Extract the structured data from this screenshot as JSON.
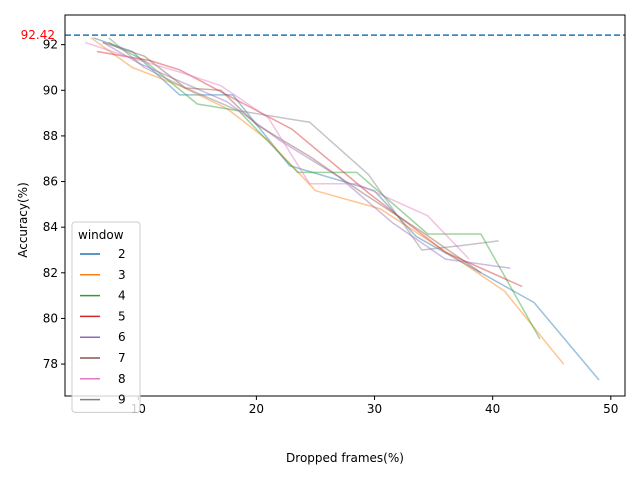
{
  "chart_data": {
    "type": "line",
    "title": "",
    "xlabel": "Dropped frames(%)",
    "ylabel": "Accuracy(%)",
    "xlim": [
      3.8,
      51.2
    ],
    "ylim": [
      76.6,
      93.3
    ],
    "xticks": [
      10,
      20,
      30,
      40,
      50
    ],
    "yticks": [
      78,
      80,
      82,
      84,
      86,
      88,
      90,
      92
    ],
    "grid": false,
    "legend": {
      "title": "window",
      "placement": "lower-left"
    },
    "reference_line": {
      "y": 92.42,
      "label": "92.42",
      "color": "#1f77b4",
      "label_color": "#ff0000",
      "style": "dashed"
    },
    "series": [
      {
        "name": "2",
        "color": "#1f77b4",
        "x": [
          6.2,
          9.5,
          13.5,
          15.0,
          18.0,
          22.8,
          30.0,
          33.5,
          43.5,
          49.0
        ],
        "y": [
          92.3,
          91.7,
          89.8,
          89.8,
          89.8,
          86.7,
          85.6,
          83.6,
          80.7,
          77.3
        ]
      },
      {
        "name": "3",
        "color": "#ff7f0e",
        "x": [
          6.0,
          9.5,
          13.5,
          17.5,
          21.0,
          25.0,
          30.5,
          37.0,
          41.0,
          46.0
        ],
        "y": [
          92.3,
          91.0,
          90.2,
          89.2,
          87.8,
          85.6,
          84.8,
          82.6,
          81.2,
          78.0
        ]
      },
      {
        "name": "4",
        "color": "#2ca02c",
        "x": [
          7.5,
          10.5,
          15.0,
          18.5,
          23.5,
          28.5,
          34.5,
          39.0,
          44.0
        ],
        "y": [
          92.1,
          91.3,
          89.4,
          89.1,
          86.4,
          86.4,
          83.7,
          83.7,
          79.1
        ]
      },
      {
        "name": "5",
        "color": "#d62728",
        "x": [
          6.5,
          11.0,
          13.5,
          17.5,
          23.0,
          29.5,
          36.0,
          42.5
        ],
        "y": [
          91.7,
          91.3,
          90.9,
          89.8,
          88.3,
          85.5,
          82.9,
          81.4
        ]
      },
      {
        "name": "6",
        "color": "#9467bd",
        "x": [
          7.0,
          10.0,
          13.5,
          17.5,
          22.0,
          27.0,
          31.5,
          36.0,
          41.5
        ],
        "y": [
          92.1,
          91.2,
          90.4,
          89.5,
          87.8,
          86.2,
          84.2,
          82.6,
          82.2
        ]
      },
      {
        "name": "7",
        "color": "#8c564b",
        "x": [
          7.0,
          10.5,
          14.0,
          17.0,
          20.0,
          24.5,
          29.0,
          34.0,
          39.0
        ],
        "y": [
          92.1,
          91.5,
          90.1,
          90.0,
          88.5,
          87.1,
          85.5,
          83.8,
          82.0
        ]
      },
      {
        "name": "8",
        "color": "#e377c2",
        "x": [
          5.5,
          9.5,
          13.5,
          17.0,
          21.0,
          24.5,
          28.5,
          34.5,
          38.0
        ],
        "y": [
          92.1,
          91.4,
          90.8,
          90.2,
          88.8,
          85.9,
          85.9,
          84.5,
          82.6
        ]
      },
      {
        "name": "9",
        "color": "#7f7f7f",
        "x": [
          7.5,
          10.5,
          14.0,
          18.5,
          24.5,
          29.5,
          34.0,
          37.5,
          40.5
        ],
        "y": [
          92.3,
          91.0,
          90.1,
          89.1,
          88.6,
          86.3,
          83.0,
          83.2,
          83.4
        ]
      }
    ]
  }
}
